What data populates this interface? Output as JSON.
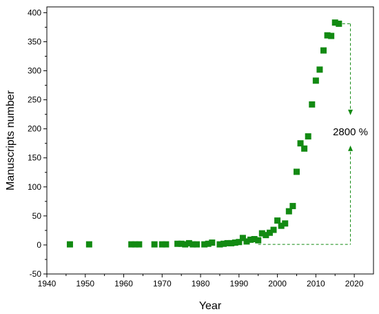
{
  "chart_data": {
    "type": "scatter",
    "title": "",
    "xlabel": "Year",
    "ylabel": "Manuscripts number",
    "xlim": [
      1940,
      2025
    ],
    "ylim": [
      -50,
      410
    ],
    "xticks": [
      1940,
      1950,
      1960,
      1970,
      1980,
      1990,
      2000,
      2010,
      2020
    ],
    "yticks": [
      -50,
      0,
      50,
      100,
      150,
      200,
      250,
      300,
      350,
      400
    ],
    "grid": false,
    "legend": "none",
    "marker": "square",
    "color": "#128a12",
    "points": [
      [
        1946,
        1
      ],
      [
        1951,
        1
      ],
      [
        1962,
        1
      ],
      [
        1963,
        1
      ],
      [
        1964,
        1
      ],
      [
        1968,
        1
      ],
      [
        1970,
        1
      ],
      [
        1971,
        1
      ],
      [
        1974,
        2
      ],
      [
        1975,
        2
      ],
      [
        1976,
        1
      ],
      [
        1977,
        3
      ],
      [
        1978,
        1
      ],
      [
        1979,
        1
      ],
      [
        1981,
        1
      ],
      [
        1982,
        2
      ],
      [
        1983,
        4
      ],
      [
        1985,
        1
      ],
      [
        1986,
        2
      ],
      [
        1987,
        3
      ],
      [
        1988,
        3
      ],
      [
        1989,
        4
      ],
      [
        1990,
        5
      ],
      [
        1991,
        12
      ],
      [
        1992,
        6
      ],
      [
        1993,
        9
      ],
      [
        1994,
        10
      ],
      [
        1995,
        8
      ],
      [
        1996,
        20
      ],
      [
        1997,
        17
      ],
      [
        1998,
        21
      ],
      [
        1999,
        26
      ],
      [
        2000,
        42
      ],
      [
        2001,
        33
      ],
      [
        2002,
        37
      ],
      [
        2003,
        58
      ],
      [
        2004,
        67
      ],
      [
        2005,
        126
      ],
      [
        2006,
        175
      ],
      [
        2007,
        166
      ],
      [
        2008,
        187
      ],
      [
        2009,
        242
      ],
      [
        2010,
        283
      ],
      [
        2011,
        302
      ],
      [
        2012,
        335
      ],
      [
        2013,
        361
      ],
      [
        2014,
        360
      ],
      [
        2015,
        383
      ],
      [
        2016,
        381
      ]
    ],
    "annotation": {
      "text": "2800 %",
      "x": 2019,
      "y_low": 1,
      "y_high": 381,
      "x_from": 1995,
      "color": "#128a12"
    }
  }
}
